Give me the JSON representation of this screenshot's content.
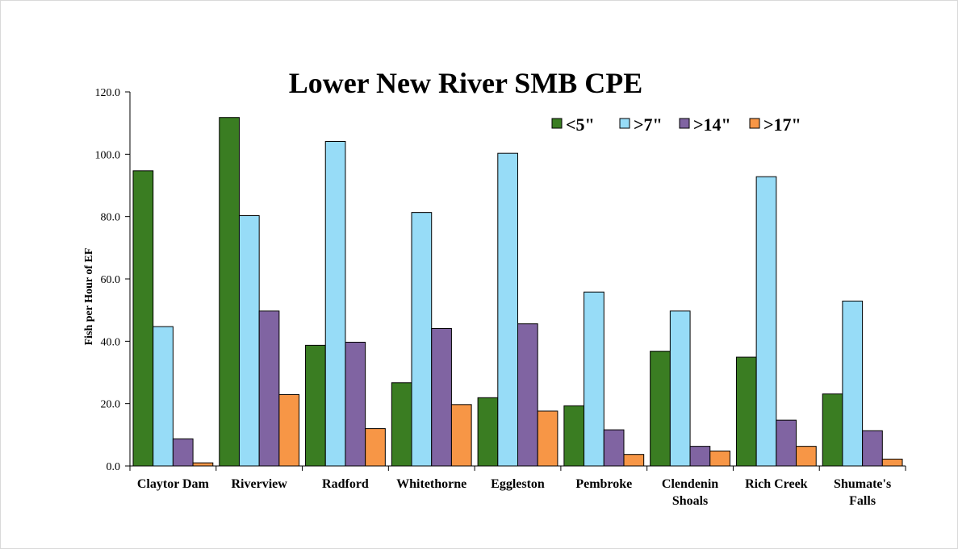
{
  "chart_data": {
    "type": "bar",
    "title": "Lower New River SMB CPE",
    "xlabel": "",
    "ylabel": "Fish per Hour of EF",
    "ylim": [
      0,
      120
    ],
    "yticks": [
      "0.0",
      "20.0",
      "40.0",
      "60.0",
      "80.0",
      "100.0",
      "120.0"
    ],
    "grid": false,
    "legend_position": "top-right",
    "categories": [
      [
        "Claytor Dam"
      ],
      [
        "Riverview"
      ],
      [
        "Radford"
      ],
      [
        "Whitethorne"
      ],
      [
        "Eggleston"
      ],
      [
        "Pembroke"
      ],
      [
        "Clendenin",
        "Shoals"
      ],
      [
        "Rich Creek"
      ],
      [
        "Shumate's",
        "Falls"
      ]
    ],
    "series": [
      {
        "name": "<5\"",
        "color": "#3a7d22",
        "values": [
          94.7,
          111.8,
          38.7,
          26.7,
          21.9,
          19.3,
          36.8,
          34.9,
          23.1
        ]
      },
      {
        "name": ">7\"",
        "color": "#97dcf7",
        "values": [
          44.7,
          80.3,
          104.1,
          81.3,
          100.3,
          55.8,
          49.7,
          92.8,
          52.9
        ]
      },
      {
        "name": ">14\"",
        "color": "#8064a2",
        "values": [
          8.7,
          49.7,
          39.7,
          44.1,
          45.6,
          11.6,
          6.3,
          14.7,
          11.3
        ]
      },
      {
        "name": ">17\"",
        "color": "#f79646",
        "values": [
          1.0,
          22.9,
          12.0,
          19.7,
          17.6,
          3.7,
          4.8,
          6.3,
          2.2
        ]
      }
    ]
  }
}
